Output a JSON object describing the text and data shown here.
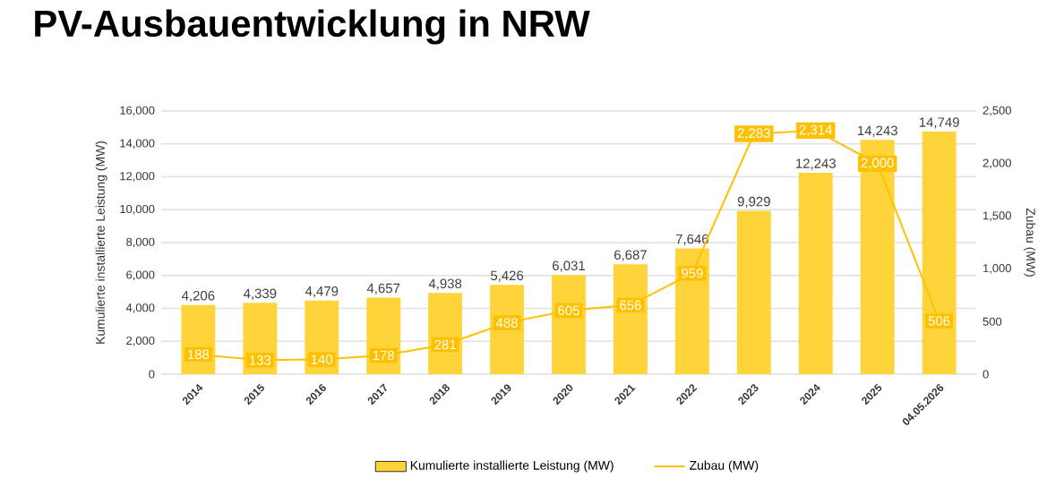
{
  "chart_data": {
    "type": "bar",
    "title": "PV-Ausbauentwicklung in NRW",
    "categories": [
      "2014",
      "2015",
      "2016",
      "2017",
      "2018",
      "2019",
      "2020",
      "2021",
      "2022",
      "2023",
      "2024",
      "2025",
      "04.05.2026"
    ],
    "series": [
      {
        "name": "Kumulierte installierte Leistung (MW)",
        "color": "#ffd43b",
        "values": [
          4206,
          4339,
          4479,
          4657,
          4938,
          5426,
          6031,
          6687,
          7646,
          9929,
          12243,
          14243,
          14749
        ],
        "value_labels": [
          "4,206",
          "4,339",
          "4,479",
          "4,657",
          "4,938",
          "5,426",
          "6,031",
          "6,687",
          "7,646",
          "9,929",
          "12,243",
          "14,243",
          "14,749"
        ]
      },
      {
        "name": "Zubau (MW)",
        "type": "line",
        "axis": "y2",
        "color": "#ffc000",
        "marker": "square",
        "values": [
          188,
          133,
          140,
          178,
          281,
          488,
          605,
          656,
          959,
          2283,
          2314,
          2000,
          506
        ],
        "value_labels": [
          "188",
          "133",
          "140",
          "178",
          "281",
          "488",
          "605",
          "656",
          "959",
          "2,283",
          "2,314",
          "2,000",
          "506"
        ]
      }
    ],
    "ylabel": "Kumulierte installierte Leistung (MW)",
    "y2label": "Zubau (MW)",
    "ylim": [
      0,
      16000
    ],
    "yticks": [
      0,
      {
        "value": 2000,
        "label": "2,000"
      },
      {
        "value": 4000,
        "label": "4,000"
      },
      {
        "value": 6000,
        "label": "6,000"
      },
      {
        "value": 8000,
        "label": "8,000"
      },
      {
        "value": 10000,
        "label": "10,000"
      },
      {
        "value": 12000,
        "label": "12,000"
      },
      {
        "value": 14000,
        "label": "14,000"
      },
      {
        "value": 16000,
        "label": "16,000"
      }
    ],
    "y2lim": [
      0,
      2500
    ],
    "y2ticks": [
      0,
      500,
      {
        "value": 1000,
        "label": "1,000"
      },
      {
        "value": 1500,
        "label": "1,500"
      },
      {
        "value": 2000,
        "label": "2,000"
      },
      {
        "value": 2500,
        "label": "2,500"
      }
    ],
    "grid": "y",
    "legend": "bottom"
  }
}
